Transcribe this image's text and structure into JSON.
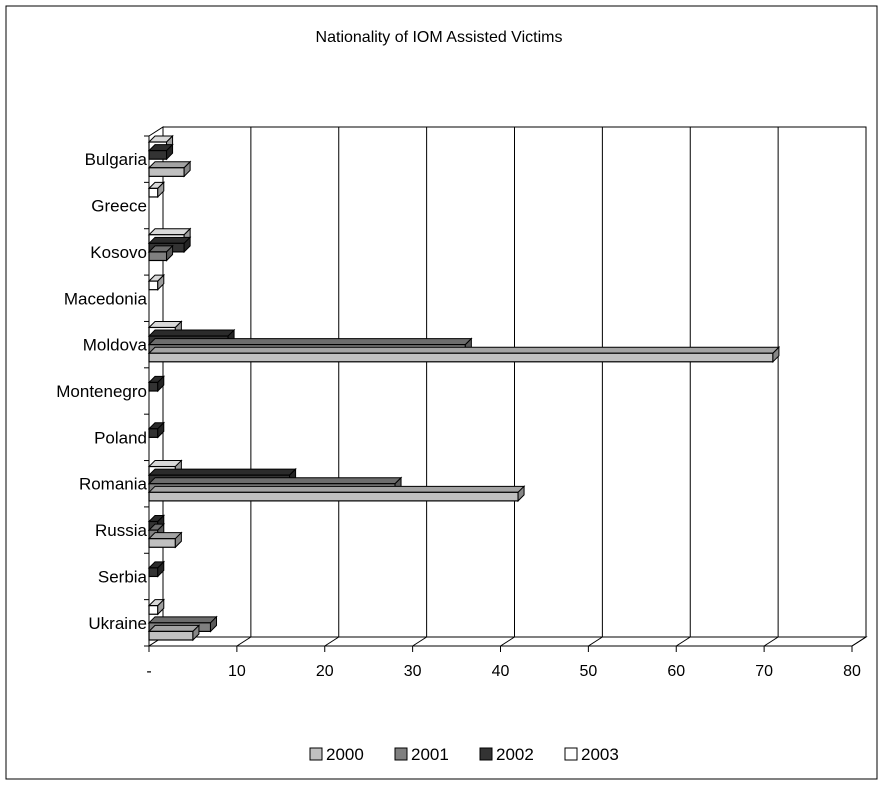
{
  "chart_data": {
    "type": "bar",
    "orientation": "horizontal",
    "style": "3d-clustered",
    "title": "Nationality of IOM Assisted Victims",
    "xlabel": "",
    "ylabel": "",
    "categories": [
      "Bulgaria",
      "Greece",
      "Kosovo",
      "Macedonia",
      "Moldova",
      "Montenegro",
      "Poland",
      "Romania",
      "Russia",
      "Serbia",
      "Ukraine"
    ],
    "series": [
      {
        "name": "2000",
        "color": "#c0c0c0",
        "values": [
          4,
          0,
          0,
          0,
          71,
          0,
          0,
          42,
          3,
          0,
          5
        ]
      },
      {
        "name": "2001",
        "color": "#808080",
        "values": [
          0,
          0,
          2,
          0,
          36,
          0,
          0,
          28,
          1,
          0,
          7
        ]
      },
      {
        "name": "2002",
        "color": "#333333",
        "values": [
          2,
          0,
          4,
          0,
          9,
          1,
          1,
          16,
          1,
          1,
          0
        ]
      },
      {
        "name": "2003",
        "color": "#ffffff",
        "values": [
          2,
          1,
          4,
          1,
          3,
          0,
          0,
          3,
          0,
          0,
          1
        ]
      }
    ],
    "xlim": [
      0,
      80
    ],
    "tick_labels": [
      "-",
      "10",
      "20",
      "30",
      "40",
      "50",
      "60",
      "70",
      "80"
    ],
    "grid": true,
    "legend_position": "bottom"
  }
}
